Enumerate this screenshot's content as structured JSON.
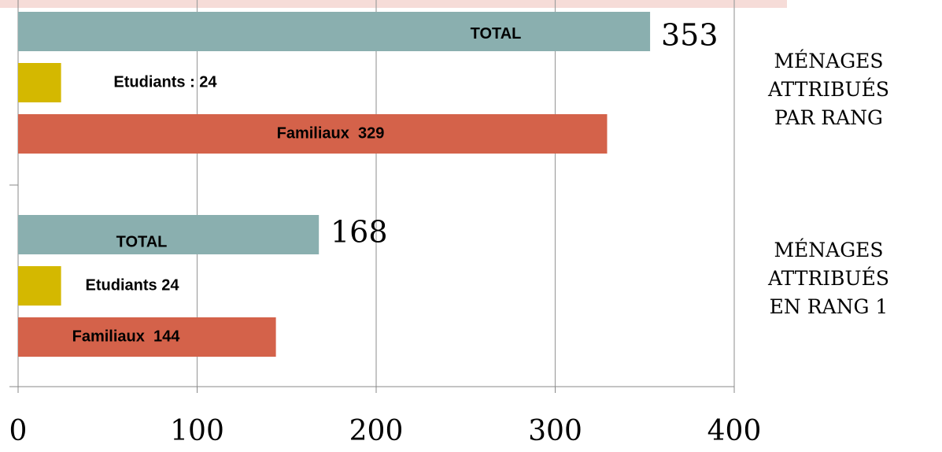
{
  "chart_data": {
    "type": "bar",
    "orientation": "horizontal",
    "categories": [
      "MÉNAGES ATTRIBUÉS PAR RANG",
      "MÉNAGES ATTRIBUÉS EN RANG 1"
    ],
    "series": [
      {
        "name": "TOTAL",
        "color": "#8aafaf",
        "values": [
          353,
          168
        ]
      },
      {
        "name": "Etudiants",
        "color": "#d4b800",
        "values": [
          24,
          24
        ],
        "value_labels": [
          "Etudiants : 24",
          "Etudiants 24"
        ]
      },
      {
        "name": "Familiaux",
        "color": "#d4624a",
        "values": [
          329,
          144
        ],
        "value_labels": [
          "Familiaux  329",
          "Familiaux  144"
        ]
      }
    ],
    "xlim": [
      0,
      400
    ],
    "xticks": [
      0,
      100,
      200,
      300,
      400
    ],
    "grid": true
  }
}
